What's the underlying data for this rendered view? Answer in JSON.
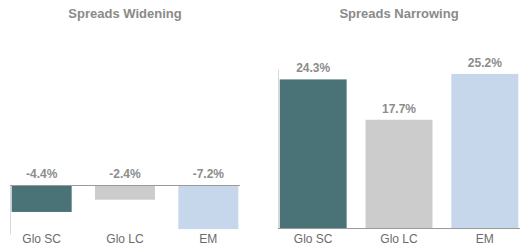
{
  "chart_data": [
    {
      "type": "bar",
      "title": "Spreads Widening",
      "categories": [
        "Glo SC",
        "Glo LC",
        "EM"
      ],
      "values": [
        -4.4,
        -2.4,
        -7.2
      ],
      "value_labels": [
        "-4.4%",
        "-2.4%",
        "-7.2%"
      ],
      "colors": [
        "#4a7377",
        "#cccccc",
        "#c6d6eb"
      ],
      "ylim": [
        -8,
        0
      ],
      "yticks": [
        0
      ],
      "data_labels": true,
      "tick_labels": "x"
    },
    {
      "type": "bar",
      "title": "Spreads Narrowing",
      "categories": [
        "Glo SC",
        "Glo LC",
        "EM"
      ],
      "values": [
        24.3,
        17.7,
        25.2
      ],
      "value_labels": [
        "24.3%",
        "17.7%",
        "25.2%"
      ],
      "colors": [
        "#4a7377",
        "#cccccc",
        "#c6d6eb"
      ],
      "ylim": [
        0,
        26
      ],
      "yticks": [
        0
      ],
      "data_labels": true,
      "tick_labels": "x"
    }
  ]
}
